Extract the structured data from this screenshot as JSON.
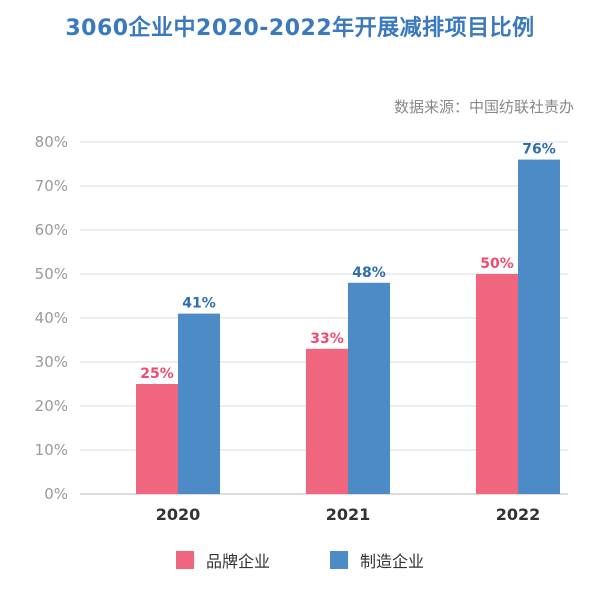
{
  "chart_data": {
    "type": "bar",
    "title": "3060企业中2020-2022年开展减排项目比例",
    "source": "数据来源：中国纺联社责办",
    "categories": [
      "2020",
      "2021",
      "2022"
    ],
    "series": [
      {
        "name": "品牌企业",
        "values": [
          25,
          33,
          50
        ],
        "labels": [
          "25%",
          "33%",
          "50%"
        ],
        "color": "#f0667f"
      },
      {
        "name": "制造企业",
        "values": [
          41,
          48,
          76
        ],
        "labels": [
          "41%",
          "48%",
          "76%"
        ],
        "color": "#4d8bc6"
      }
    ],
    "ylim": [
      0,
      80
    ],
    "yticks": [
      "0%",
      "10%",
      "20%",
      "30%",
      "40%",
      "50%",
      "60%",
      "70%",
      "80%"
    ],
    "grid": true,
    "legend_position": "bottom"
  }
}
